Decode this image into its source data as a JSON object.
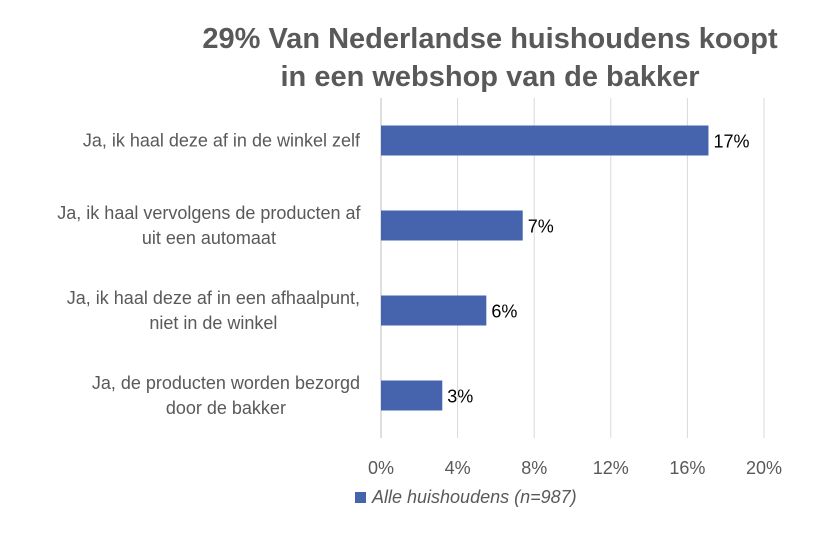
{
  "chart_data": {
    "type": "bar",
    "orientation": "horizontal",
    "title_lines": [
      "29% Van Nederlandse huishoudens koopt",
      "in een webshop van de bakker"
    ],
    "categories": [
      [
        "Ja, ik haal deze af in de winkel zelf"
      ],
      [
        "Ja, ik haal vervolgens de producten af",
        "uit een automaat"
      ],
      [
        "Ja, ik haal deze af in een afhaalpunt,",
        "niet in de winkel"
      ],
      [
        "Ja, de producten worden bezorgd",
        "door de bakker"
      ]
    ],
    "series": [
      {
        "name": "Alle huishoudens (n=987)",
        "values": [
          17.1,
          7.4,
          5.5,
          3.2
        ],
        "labels": [
          "17%",
          "7%",
          "6%",
          "3%"
        ],
        "color": "#4564ad"
      }
    ],
    "xlim": [
      0,
      20
    ],
    "xticks": [
      0,
      4,
      8,
      12,
      16,
      20
    ],
    "xtick_labels": [
      "0%",
      "4%",
      "8%",
      "12%",
      "16%",
      "20%"
    ],
    "grid": true,
    "legend_position": "bottom"
  }
}
